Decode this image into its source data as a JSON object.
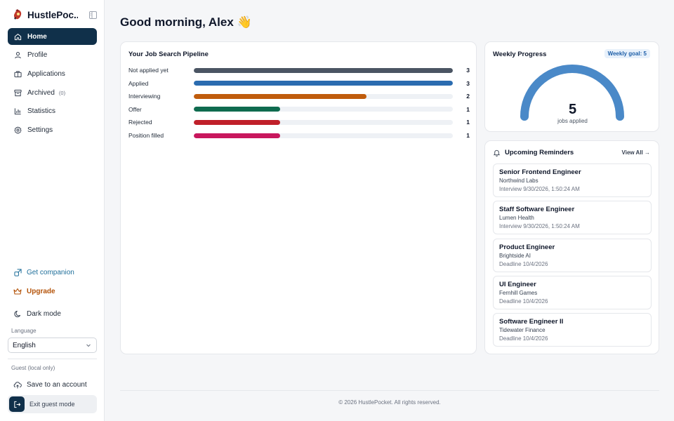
{
  "app": {
    "name": "HustlePocket",
    "name_display": "HustlePoc..."
  },
  "sidebar": {
    "items": [
      {
        "label": "Home",
        "icon": "home-icon"
      },
      {
        "label": "Profile",
        "icon": "user-icon"
      },
      {
        "label": "Applications",
        "icon": "briefcase-icon"
      },
      {
        "label": "Archived",
        "icon": "archive-icon",
        "count": "(0)"
      },
      {
        "label": "Statistics",
        "icon": "bar-chart-icon"
      },
      {
        "label": "Settings",
        "icon": "gear-icon"
      }
    ],
    "companion_label": "Get companion",
    "upgrade_label": "Upgrade",
    "dark_mode_label": "Dark mode",
    "language_label": "Language",
    "language_value": "English",
    "guest_label": "Guest (local only)",
    "save_account_label": "Save to an account",
    "exit_guest_label": "Exit guest mode"
  },
  "main": {
    "greeting": "Good morning, Alex 👋",
    "pipeline": {
      "title": "Your Job Search Pipeline",
      "max": 3,
      "rows": [
        {
          "label": "Not applied yet",
          "count": 3,
          "color": "#4b5563"
        },
        {
          "label": "Applied",
          "count": 3,
          "color": "#2b6cb0"
        },
        {
          "label": "Interviewing",
          "count": 2,
          "color": "#c05c0c"
        },
        {
          "label": "Offer",
          "count": 1,
          "color": "#0f6b4f"
        },
        {
          "label": "Rejected",
          "count": 1,
          "color": "#c0202a"
        },
        {
          "label": "Position filled",
          "count": 1,
          "color": "#c8175d"
        }
      ]
    },
    "weekly": {
      "title": "Weekly Progress",
      "goal_label": "Weekly goal: 5",
      "value": "5",
      "progress": 1.0,
      "sub_label": "jobs applied",
      "color": "#4a89c8"
    },
    "reminders": {
      "title": "Upcoming Reminders",
      "view_all": "View All →",
      "items": [
        {
          "title": "Senior Frontend Engineer",
          "company": "Northwind Labs",
          "date": "Interview 9/30/2026, 1:50:24 AM"
        },
        {
          "title": "Staff Software Engineer",
          "company": "Lumen Health",
          "date": "Interview 9/30/2026, 1:50:24 AM"
        },
        {
          "title": "Product Engineer",
          "company": "Brightside AI",
          "date": "Deadline 10/4/2026"
        },
        {
          "title": "UI Engineer",
          "company": "Fernhill Games",
          "date": "Deadline 10/4/2026"
        },
        {
          "title": "Software Engineer II",
          "company": "Tidewater Finance",
          "date": "Deadline 10/4/2026"
        }
      ]
    }
  },
  "footer": {
    "text": "© 2026 HustlePocket. All rights reserved."
  }
}
